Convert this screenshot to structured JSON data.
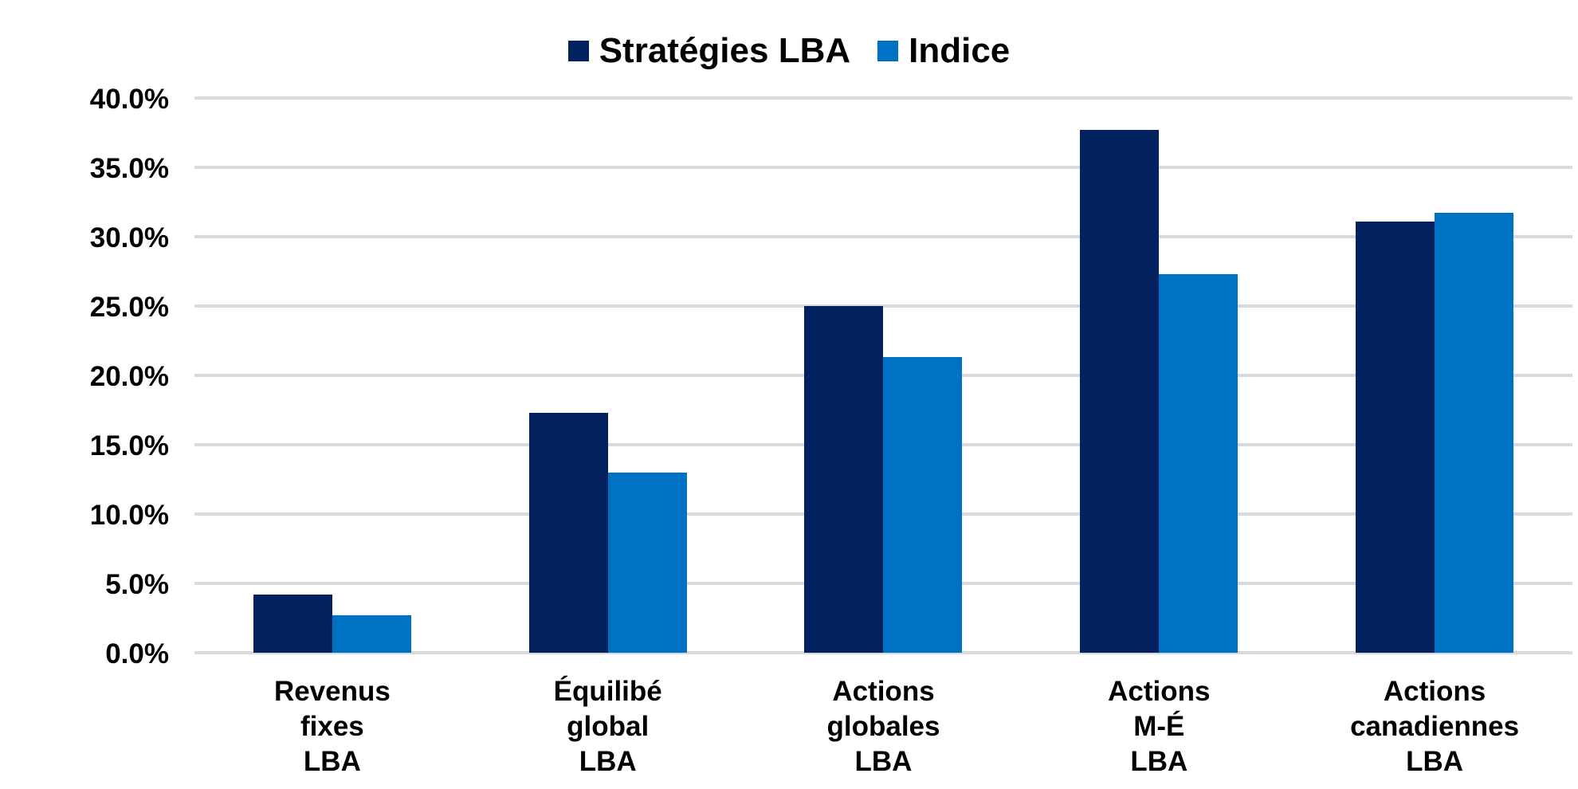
{
  "legend": {
    "items": [
      {
        "label": "Stratégies LBA",
        "color": "#02215E"
      },
      {
        "label": "Indice",
        "color": "#0072C3"
      }
    ]
  },
  "chart_data": {
    "type": "bar",
    "title": "",
    "xlabel": "",
    "ylabel": "",
    "categories": [
      "Revenus\nfixes\nLBA",
      "Équilibé\nglobal\nLBA",
      "Actions\nglobales\nLBA",
      "Actions\nM-É\nLBA",
      "Actions\ncanadiennes\nLBA"
    ],
    "series": [
      {
        "name": "Stratégies LBA",
        "color": "#02215E",
        "values": [
          4.2,
          17.3,
          25.0,
          37.7,
          31.1
        ]
      },
      {
        "name": "Indice",
        "color": "#0072C3",
        "values": [
          2.7,
          13.0,
          21.3,
          27.3,
          31.7
        ]
      }
    ],
    "ylim": [
      0,
      40
    ],
    "y_tick_step": 5,
    "y_tick_labels": [
      "0.0%",
      "5.0%",
      "10.0%",
      "15.0%",
      "20.0%",
      "25.0%",
      "30.0%",
      "35.0%",
      "40.0%"
    ],
    "y_tick_values": [
      0,
      5,
      10,
      15,
      20,
      25,
      30,
      35,
      40
    ],
    "grid": true,
    "gridline_color": "#D9D9D9",
    "legend_position": "top",
    "background_color": "#FFFFFF"
  }
}
